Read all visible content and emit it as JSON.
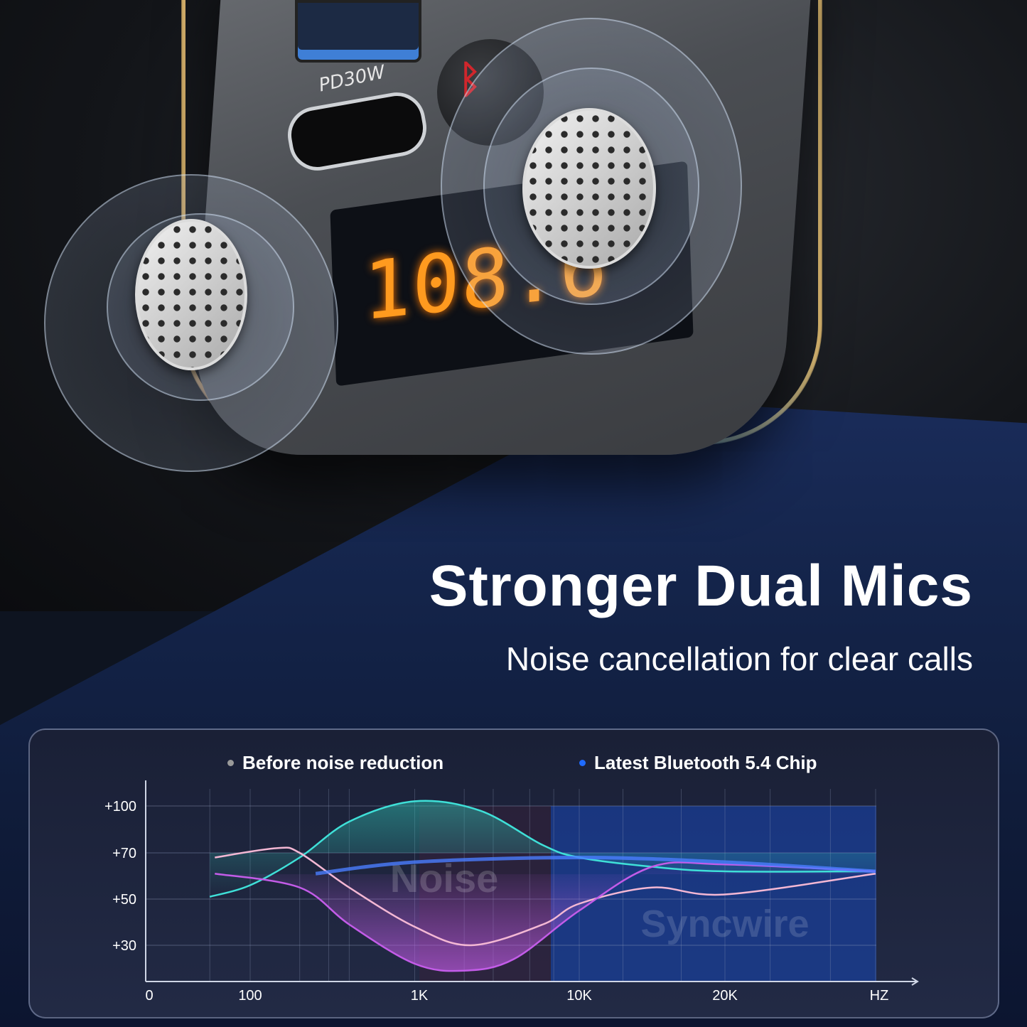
{
  "product": {
    "port_label": "PD30W",
    "display_frequency": "108.6",
    "button_icon": "bluetooth-hangup-icon"
  },
  "headline": {
    "title": "Stronger Dual Mics",
    "subtitle": "Noise cancellation for clear calls"
  },
  "colors": {
    "accent_orange": "#ff9a1f",
    "before_series": "#f4b8d4",
    "after_series": "#c35ce8",
    "cyan_series": "#3fe0d8",
    "bluetooth_series": "#4a7dff",
    "legend_before_dot": "#9a9a9a",
    "legend_bt_dot": "#1f6bff"
  },
  "chart_data": {
    "type": "line",
    "title": "",
    "legend": [
      {
        "label": "Before noise reduction",
        "color": "#9a9a9a"
      },
      {
        "label": "Latest Bluetooth 5.4 Chip",
        "color": "#1f6bff"
      }
    ],
    "legend_placement": "top",
    "x_ticks": [
      "0",
      "100",
      "1K",
      "10K",
      "20K",
      "HZ"
    ],
    "y_ticks": [
      "+100",
      "+70",
      "+50",
      "+30"
    ],
    "grid": true,
    "annotations": [
      "Noise",
      "Syncwire"
    ],
    "series": [
      {
        "color": "#3fe0d8",
        "x": [
          60,
          100,
          200,
          400,
          1000,
          2500,
          6000,
          10000,
          15000,
          20000,
          30000
        ],
        "y": [
          51,
          56,
          68,
          90,
          103,
          97,
          75,
          68,
          64,
          62,
          62
        ]
      },
      {
        "color": "#f4b8d4",
        "x": [
          65,
          145,
          200,
          400,
          1000,
          2200,
          6000,
          10000,
          15000,
          20000,
          30000
        ],
        "y": [
          68,
          73,
          70,
          55,
          38,
          30,
          39,
          48,
          55,
          52,
          61
        ]
      },
      {
        "color": "#c35ce8",
        "x": [
          65,
          200,
          400,
          1000,
          2000,
          4000,
          10000,
          15000,
          20000,
          30000
        ],
        "y": [
          61,
          55,
          39,
          22,
          19,
          24,
          45,
          64,
          65,
          62
        ]
      },
      {
        "color": "#4a7dff",
        "x": [
          250,
          1000,
          10000,
          20000,
          30000
        ],
        "y": [
          61,
          66,
          68,
          66,
          62
        ]
      }
    ]
  }
}
